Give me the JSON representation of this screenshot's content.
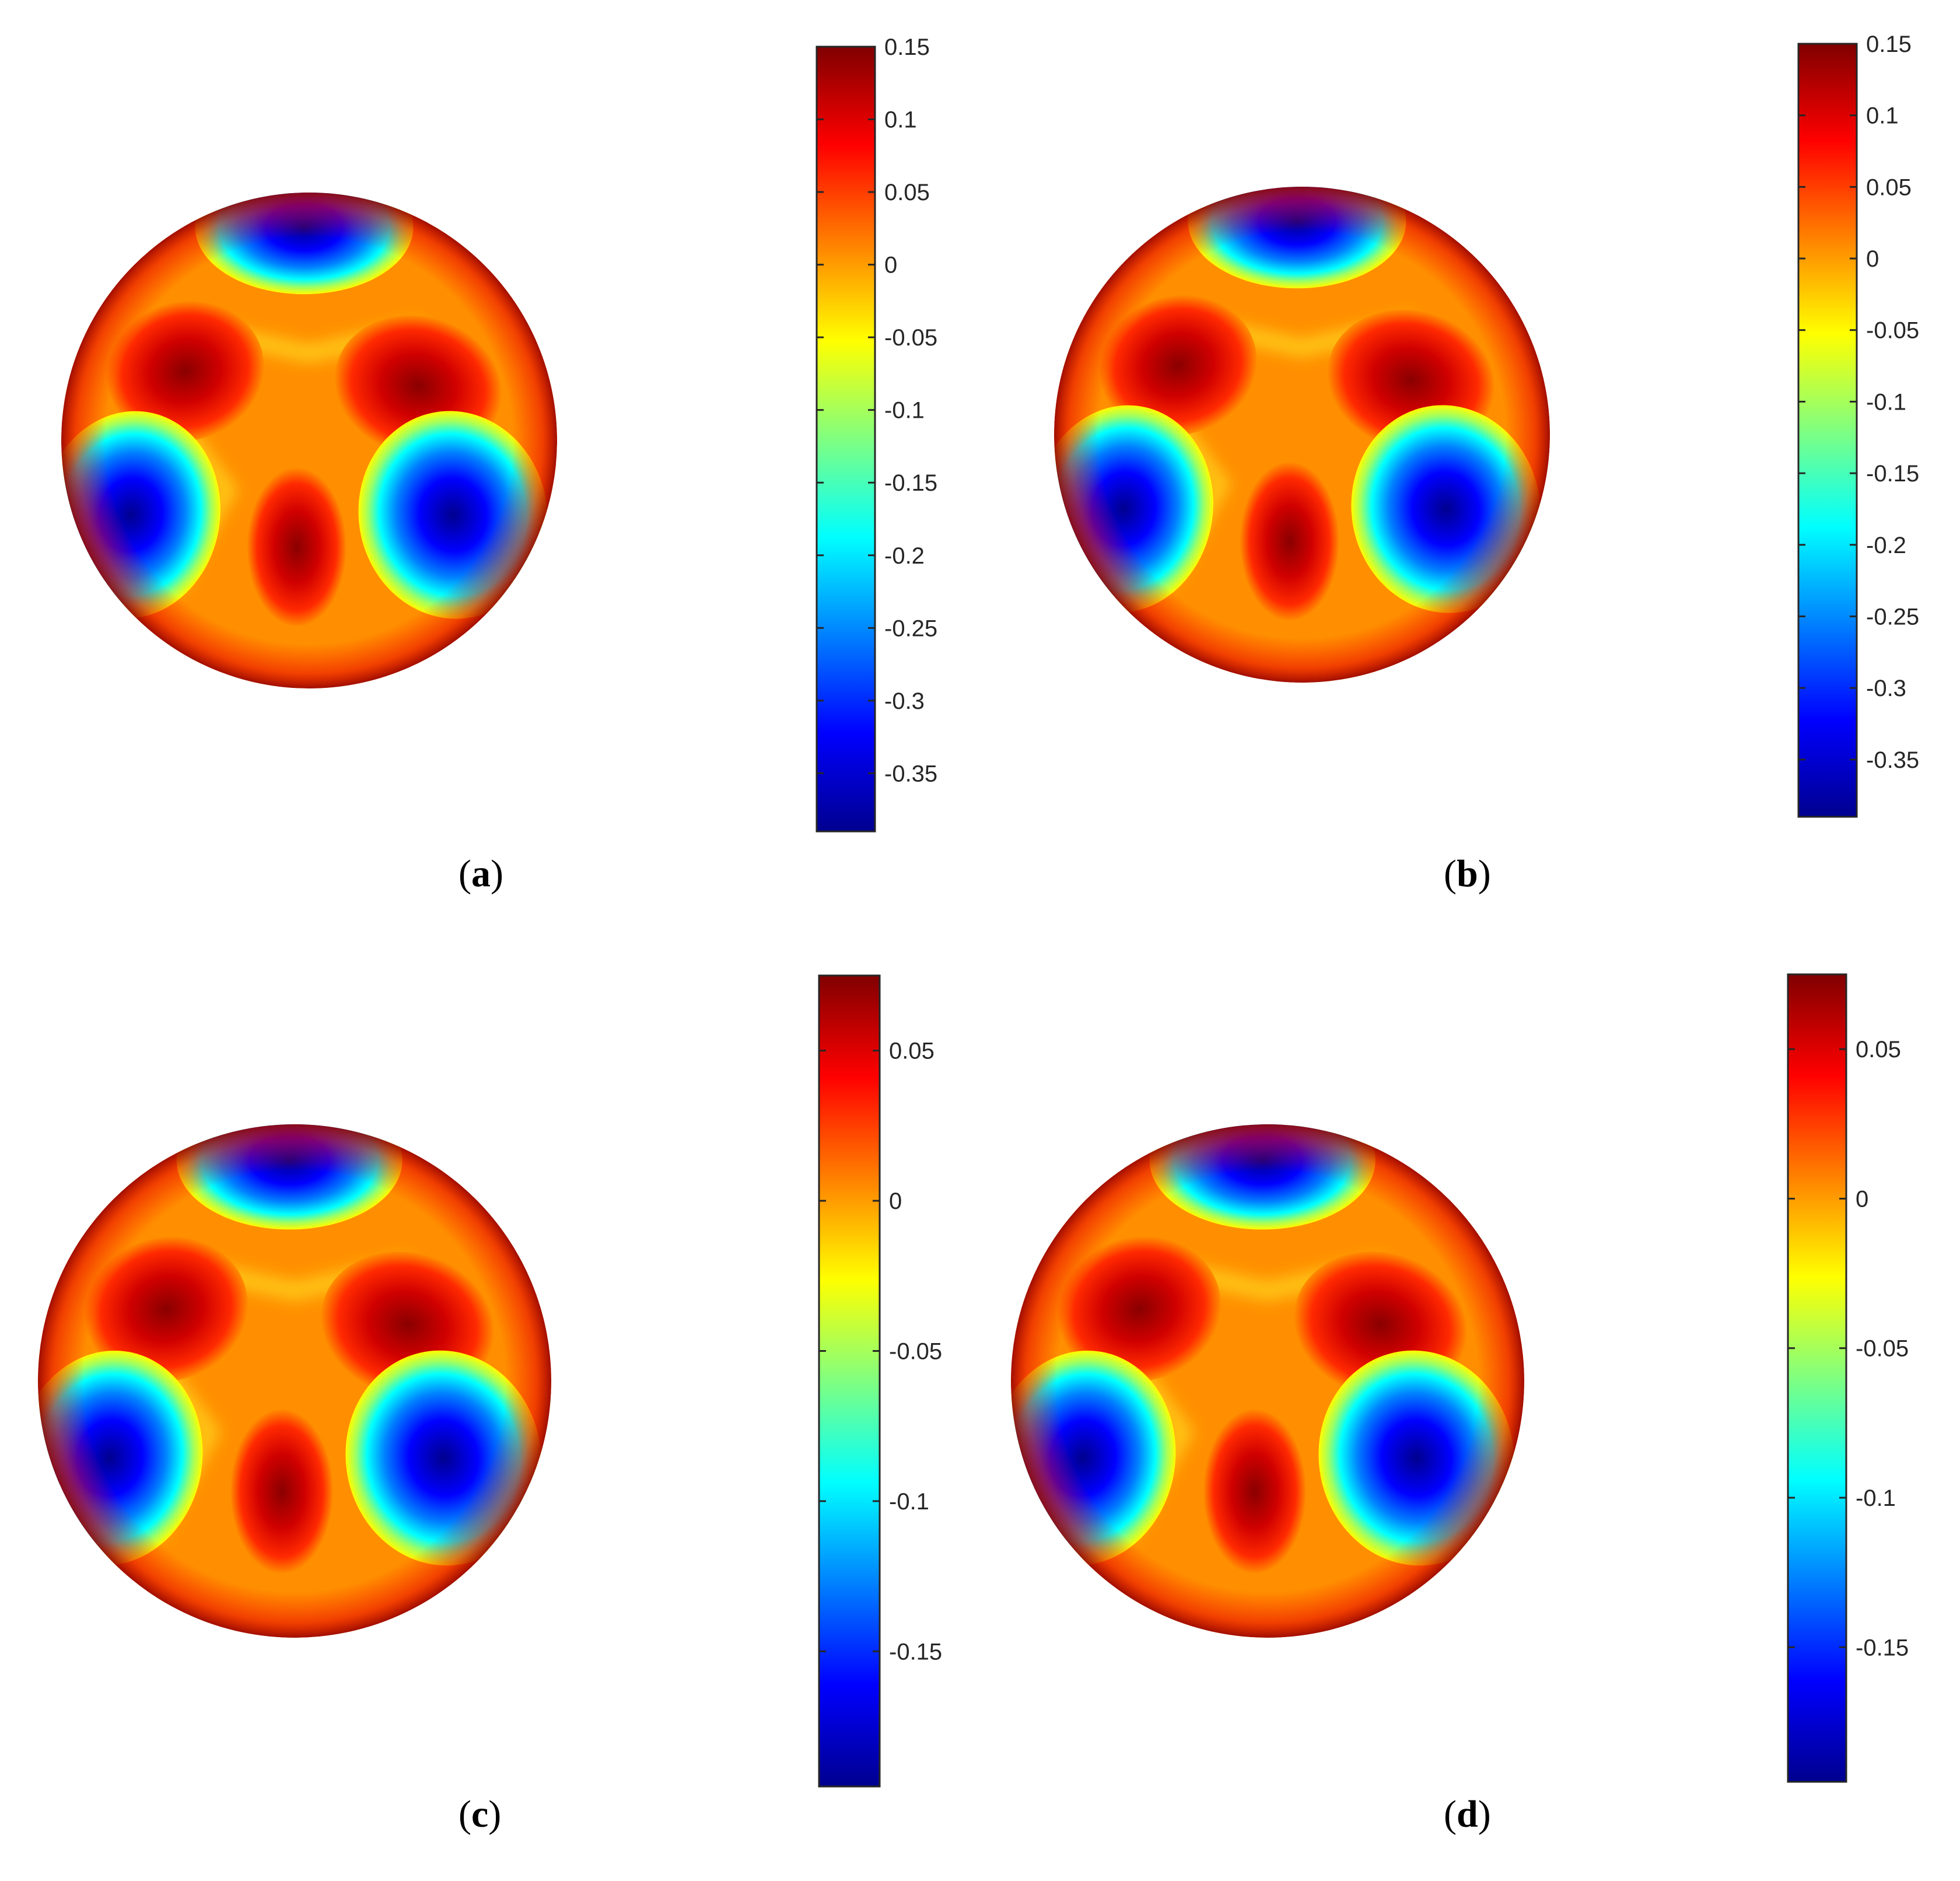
{
  "colormap": "jet",
  "colormap_stops": [
    "#00008f",
    "#0000ff",
    "#0080ff",
    "#00ffff",
    "#80ff80",
    "#ffff00",
    "#ff8000",
    "#ff0000",
    "#800000"
  ],
  "chart_data": [
    {
      "type": "heatmap",
      "panel": "a",
      "label": "a",
      "colorbar": {
        "range": [
          -0.39,
          0.15
        ],
        "ticks": [
          0.15,
          0.1,
          0.05,
          0,
          -0.05,
          -0.1,
          -0.15,
          -0.2,
          -0.25,
          -0.3,
          -0.35
        ],
        "tick_labels": [
          "0.15",
          "0.1",
          "0.05",
          "0",
          "-0.05",
          "-0.1",
          "-0.15",
          "-0.2",
          "-0.25",
          "-0.3",
          "-0.35"
        ]
      },
      "field": {
        "shape": "sphere",
        "negative_lobes": [
          "top",
          "lower-left",
          "lower-right"
        ],
        "positive_lobes": [
          "upper-left",
          "upper-right",
          "bottom-center"
        ],
        "min": -0.39,
        "max": 0.15
      }
    },
    {
      "type": "heatmap",
      "panel": "b",
      "label": "b",
      "colorbar": {
        "range": [
          -0.39,
          0.15
        ],
        "ticks": [
          0.15,
          0.1,
          0.05,
          0,
          -0.05,
          -0.1,
          -0.15,
          -0.2,
          -0.25,
          -0.3,
          -0.35
        ],
        "tick_labels": [
          "0.15",
          "0.1",
          "0.05",
          "0",
          "-0.05",
          "-0.1",
          "-0.15",
          "-0.2",
          "-0.25",
          "-0.3",
          "-0.35"
        ]
      },
      "field": {
        "shape": "sphere",
        "negative_lobes": [
          "top",
          "lower-left",
          "lower-right"
        ],
        "positive_lobes": [
          "upper-left",
          "upper-right",
          "bottom-center"
        ],
        "min": -0.39,
        "max": 0.15
      }
    },
    {
      "type": "heatmap",
      "panel": "c",
      "label": "c",
      "colorbar": {
        "range": [
          -0.195,
          0.075
        ],
        "ticks": [
          0.05,
          0,
          -0.05,
          -0.1,
          -0.15
        ],
        "tick_labels": [
          "0.05",
          "0",
          "-0.05",
          "-0.1",
          "-0.15"
        ]
      },
      "field": {
        "shape": "sphere",
        "negative_lobes": [
          "top",
          "lower-left",
          "lower-right"
        ],
        "positive_lobes": [
          "upper-left",
          "upper-right",
          "bottom-center"
        ],
        "min": -0.195,
        "max": 0.075
      }
    },
    {
      "type": "heatmap",
      "panel": "d",
      "label": "d",
      "colorbar": {
        "range": [
          -0.195,
          0.075
        ],
        "ticks": [
          0.05,
          0,
          -0.05,
          -0.1,
          -0.15
        ],
        "tick_labels": [
          "0.05",
          "0",
          "-0.05",
          "-0.1",
          "-0.15"
        ]
      },
      "field": {
        "shape": "sphere",
        "negative_lobes": [
          "top",
          "lower-left",
          "lower-right"
        ],
        "positive_lobes": [
          "upper-left",
          "upper-right",
          "bottom-center"
        ],
        "min": -0.195,
        "max": 0.075
      }
    }
  ]
}
